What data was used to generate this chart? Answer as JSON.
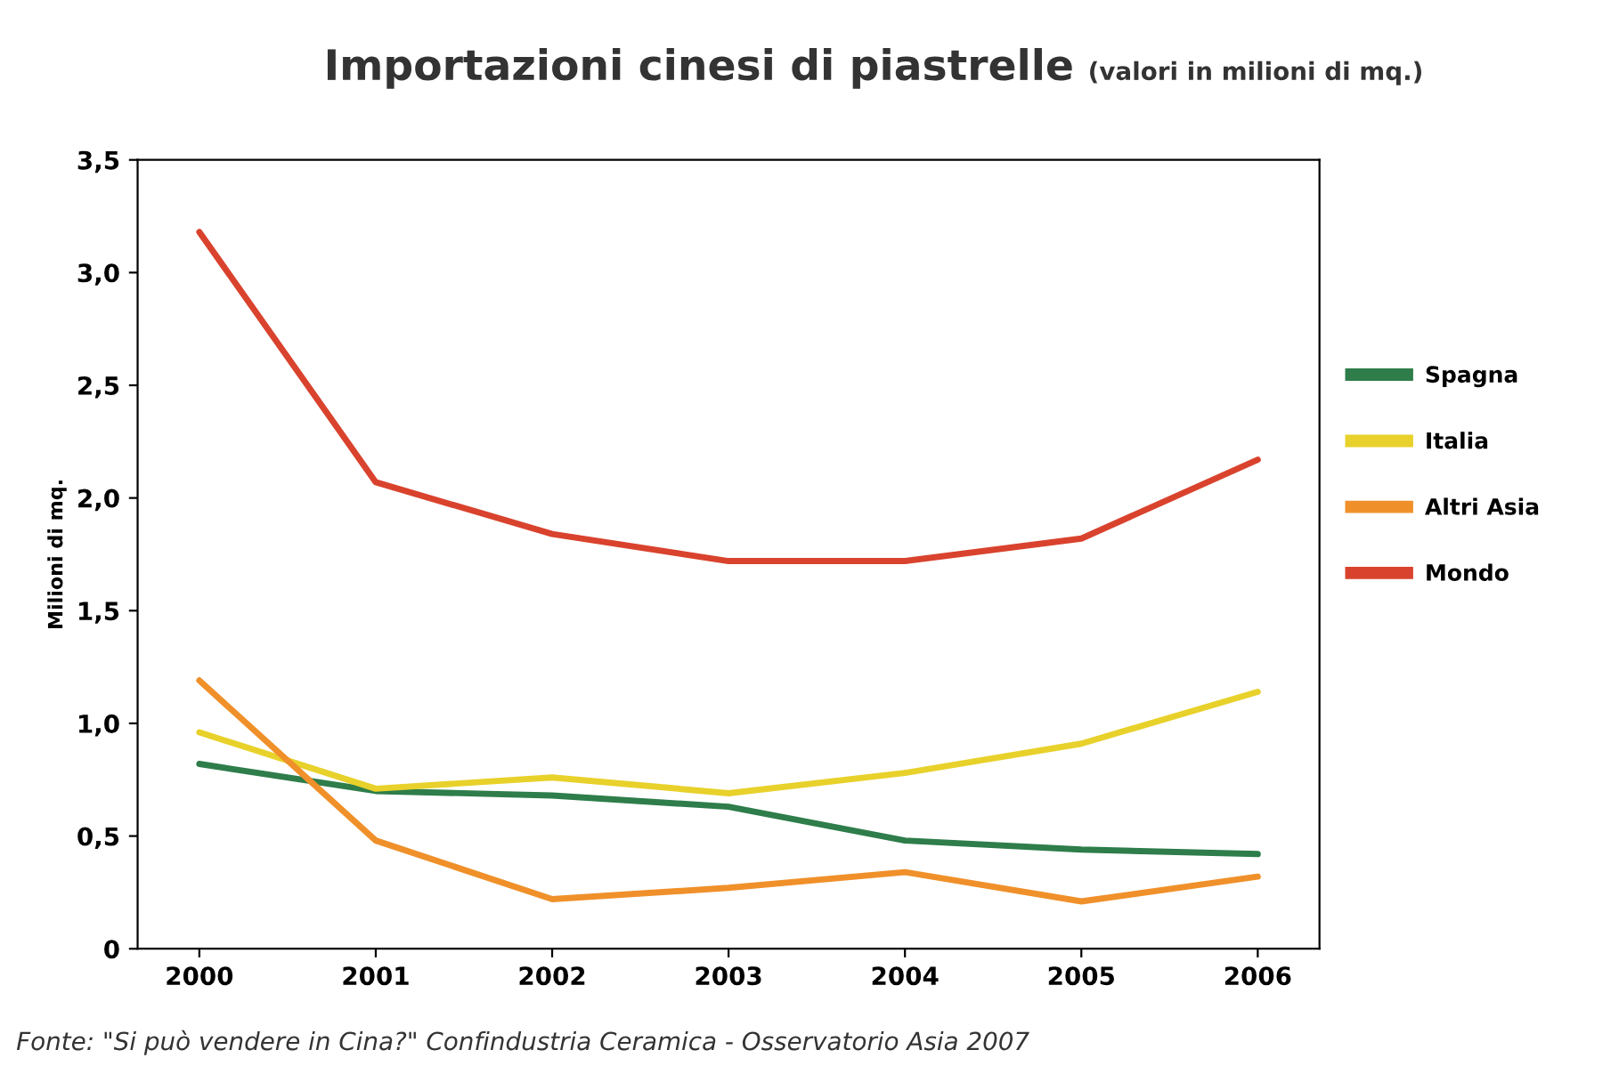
{
  "chart_data": {
    "type": "line",
    "title": "Importazioni cinesi di piastrelle",
    "subtitle": "(valori in milioni di mq.)",
    "ylabel": "Milioni di mq.",
    "categories": [
      "2000",
      "2001",
      "2002",
      "2003",
      "2004",
      "2005",
      "2006"
    ],
    "series": [
      {
        "name": "Spagna",
        "color": "#2e7d4a",
        "values": [
          0.82,
          0.7,
          0.68,
          0.63,
          0.48,
          0.44,
          0.42
        ]
      },
      {
        "name": "Italia",
        "color": "#e8d12a",
        "values": [
          0.96,
          0.71,
          0.76,
          0.69,
          0.78,
          0.91,
          1.14
        ]
      },
      {
        "name": "Altri Asia",
        "color": "#f0902a",
        "values": [
          1.19,
          0.48,
          0.22,
          0.27,
          0.34,
          0.21,
          0.32
        ]
      },
      {
        "name": "Mondo",
        "color": "#d9432e",
        "values": [
          3.18,
          2.07,
          1.84,
          1.72,
          1.72,
          1.82,
          2.17
        ]
      }
    ],
    "ylim": [
      0,
      3.5
    ],
    "yticks": [
      0,
      {
        "value": 0.5,
        "label": "0,5"
      },
      {
        "value": 1.0,
        "label": "1,0"
      },
      {
        "value": 1.5,
        "label": "1,5"
      },
      {
        "value": 2.0,
        "label": "2,0"
      },
      {
        "value": 2.5,
        "label": "2,5"
      },
      {
        "value": 3.0,
        "label": "3,0"
      },
      {
        "value": 3.5,
        "label": "3,5"
      }
    ],
    "grid": false,
    "legend": "right",
    "marker": "none",
    "line_style": "solid",
    "annotations": [
      "Fonte: \"Si può vendere in Cina?\" Confindustria Ceramica - Osservatorio Asia 2007"
    ]
  }
}
